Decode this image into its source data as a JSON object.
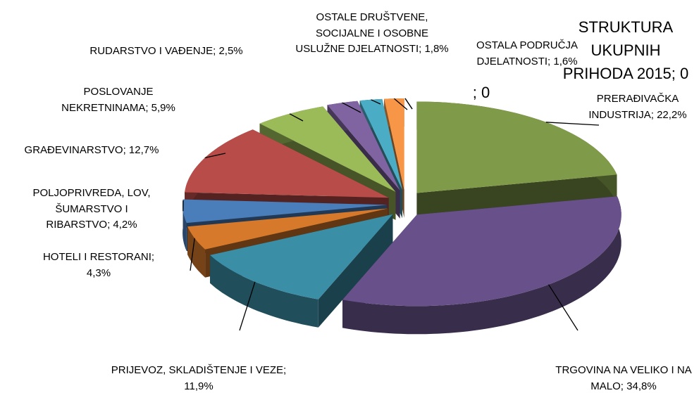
{
  "chart_data": {
    "type": "pie3d",
    "labels": [
      "PRERAĐIVAČKA INDUSTRIJA; 22,2%",
      "TRGOVINA NA VELIKO I NA MALO; 34,8%",
      "PRIJEVOZ, SKLADIŠTENJE I VEZE; 11,9%",
      "HOTELI I RESTORANI; 4,3%",
      "POLJOPRIVREDA, LOV, ŠUMARSTVO I RIBARSTVO; 4,2%",
      "GRAĐEVINARSTVO; 12,7%",
      "POSLOVANJE NEKRETNINAMA; 5,9%",
      "RUDARSTVO I VAĐENJE; 2,5%",
      "OSTALE DRUŠTVENE, SOCIJALNE I OSOBNE USLUŽNE DJELATNOSTI; 1,8%",
      "OSTALA PODRUČJA DJELATNOSTI; 1,6%",
      "; 0",
      "STRUKTURA UKUPNIH PRIHODA 2015; 0"
    ],
    "values": [
      22.2,
      34.8,
      11.9,
      4.3,
      4.2,
      12.7,
      5.9,
      2.5,
      1.8,
      1.6,
      0,
      0
    ],
    "colors": [
      "#7f9a48",
      "#68518a",
      "#3a8ea6",
      "#d6792b",
      "#4a7ebb",
      "#b84c49",
      "#9bbb59",
      "#8064a2",
      "#4bacc6",
      "#f79646",
      "#4f81bd",
      "#c0504d"
    ]
  }
}
